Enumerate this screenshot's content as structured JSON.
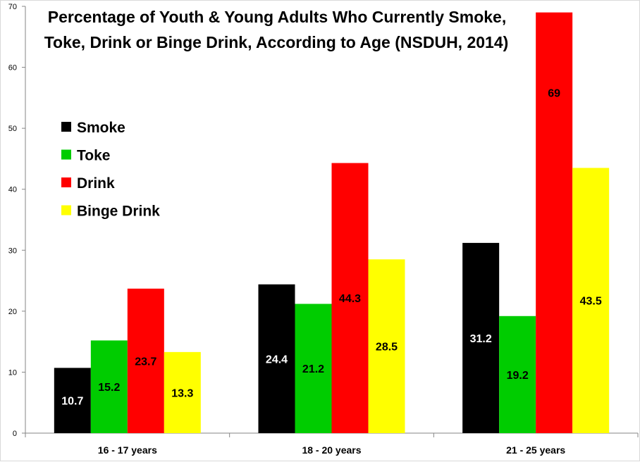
{
  "chart_data": {
    "type": "bar",
    "title": "Percentage of Youth & Young Adults Who Currently Smoke, Toke, Drink or Binge Drink, According to Age (NSDUH, 2014)",
    "title_lines": [
      "Percentage of Youth & Young Adults Who Currently Smoke,",
      "Toke, Drink or Binge Drink, According to Age (NSDUH, 2014)"
    ],
    "categories": [
      "16 - 17 years",
      "18 - 20 years",
      "21 - 25 years"
    ],
    "series": [
      {
        "name": "Smoke",
        "color": "#000000",
        "label_color": "#ffffff",
        "values": [
          10.7,
          24.4,
          31.2
        ]
      },
      {
        "name": "Toke",
        "color": "#00cc00",
        "label_color": "#000000",
        "values": [
          15.2,
          21.2,
          19.2
        ]
      },
      {
        "name": "Drink",
        "color": "#ff0000",
        "label_color": "#000000",
        "values": [
          23.7,
          44.3,
          69
        ]
      },
      {
        "name": "Binge Drink",
        "color": "#ffff00",
        "label_color": "#000000",
        "values": [
          13.3,
          28.5,
          43.5
        ]
      }
    ],
    "ylim": [
      0,
      70
    ],
    "yticks": [
      0,
      10,
      20,
      30,
      40,
      50,
      60,
      70
    ],
    "xlabel": "",
    "ylabel": "",
    "grid": false,
    "legend_position": "left"
  }
}
